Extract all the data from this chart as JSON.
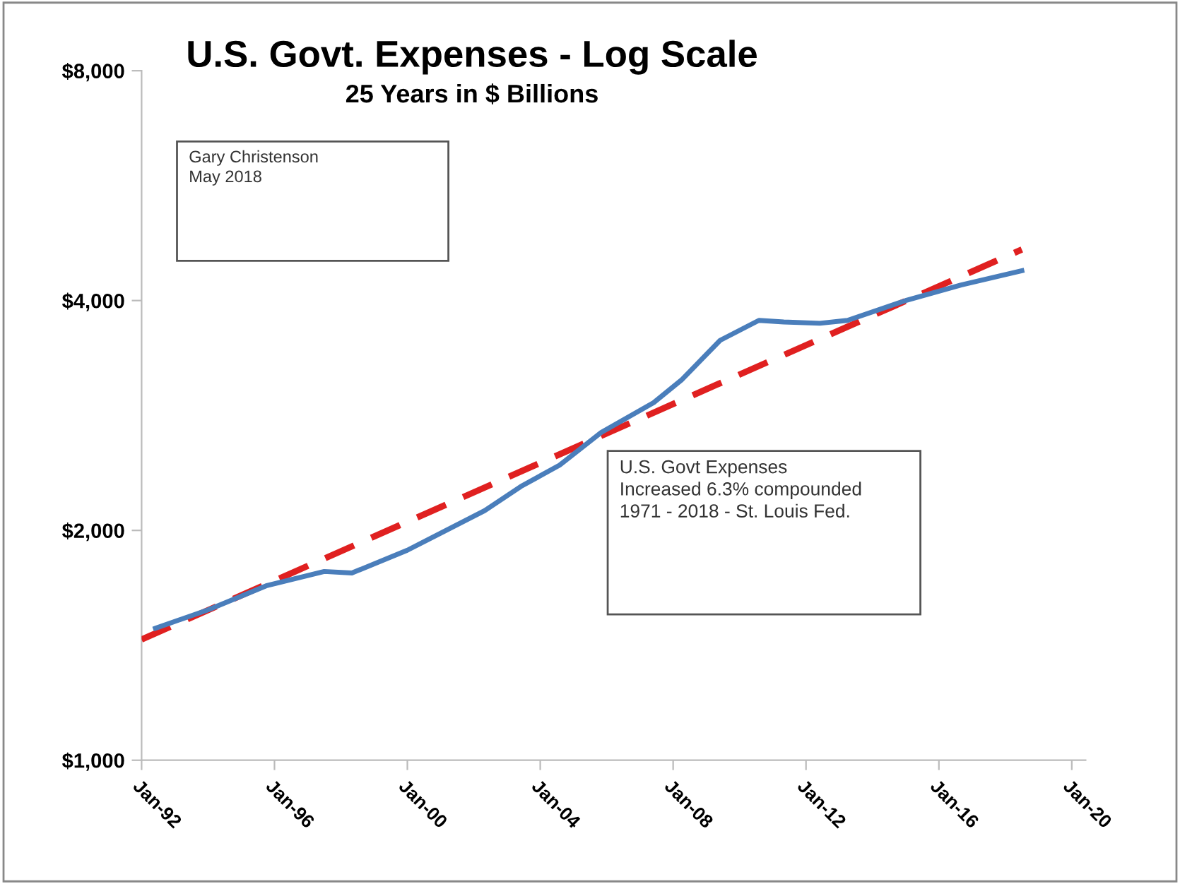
{
  "chart_data": {
    "type": "line",
    "title": "U.S. Govt. Expenses - Log Scale",
    "subtitle": "25 Years in $ Billions",
    "annotations": [
      "Gary Christenson\nMay 2018",
      "U.S. Govt Expenses\nIncreased 6.3% compounded\n1971 - 2018 - St. Louis Fed."
    ],
    "log": "y",
    "grid": false,
    "legend": false,
    "xlim": [
      "1992-01-01",
      "2020-06-01"
    ],
    "xticks": [
      {
        "value": "1992-01-01",
        "label": "Jan-92"
      },
      {
        "value": "1996-01-01",
        "label": "Jan-96"
      },
      {
        "value": "2000-01-01",
        "label": "Jan-00"
      },
      {
        "value": "2004-01-01",
        "label": "Jan-04"
      },
      {
        "value": "2008-01-01",
        "label": "Jan-08"
      },
      {
        "value": "2012-01-01",
        "label": "Jan-12"
      },
      {
        "value": "2016-01-01",
        "label": "Jan-16"
      },
      {
        "value": "2020-01-01",
        "label": "Jan-20"
      }
    ],
    "ylim": [
      1000,
      8000
    ],
    "yticks": [
      {
        "value": 1000,
        "label": "$1,000"
      },
      {
        "value": 2000,
        "label": "$2,000"
      },
      {
        "value": 4000,
        "label": "$4,000"
      },
      {
        "value": 8000,
        "label": "$8,000"
      }
    ],
    "series": [
      {
        "color": "#4a7ebb",
        "line_style": "solid",
        "x": [
          "1992-06",
          "1994-01",
          "1995-10",
          "1997-07",
          "1998-05",
          "2000-01",
          "2002-05",
          "2003-06",
          "2004-08",
          "2005-11",
          "2007-06",
          "2008-04",
          "2009-06",
          "2010-08",
          "2011-05",
          "2012-06",
          "2013-04",
          "2015-01",
          "2016-09",
          "2018-07"
        ],
        "values": [
          1489,
          1574,
          1692,
          1767,
          1759,
          1884,
          2123,
          2283,
          2435,
          2687,
          2940,
          3147,
          3548,
          3768,
          3750,
          3735,
          3768,
          4000,
          4193,
          4376
        ]
      },
      {
        "color": "#e02020",
        "line_style": "dashed",
        "x": [
          "1992-01",
          "2018-07"
        ],
        "values": [
          1439,
          4666
        ]
      }
    ]
  }
}
